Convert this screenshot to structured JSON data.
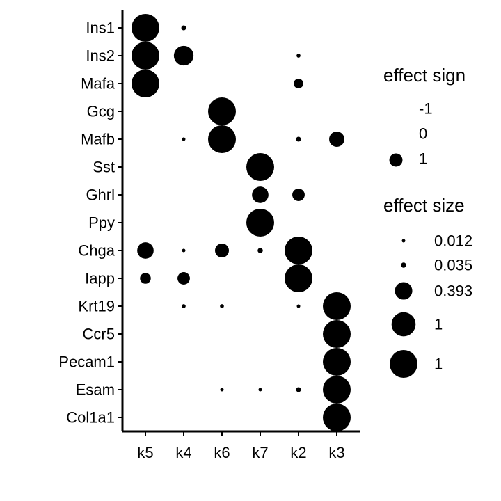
{
  "chart_data": {
    "type": "scatter",
    "subtype": "dot-plot",
    "x_categories": [
      "k5",
      "k4",
      "k6",
      "k7",
      "k2",
      "k3"
    ],
    "y_categories": [
      "Ins1",
      "Ins2",
      "Mafa",
      "Gcg",
      "Mafb",
      "Sst",
      "Ghrl",
      "Ppy",
      "Chga",
      "Iapp",
      "Krt19",
      "Ccr5",
      "Pecam1",
      "Esam",
      "Col1a1"
    ],
    "points": [
      {
        "gene": "Ins1",
        "cluster": "k5",
        "size": 1
      },
      {
        "gene": "Ins1",
        "cluster": "k4",
        "size": 0.03
      },
      {
        "gene": "Ins2",
        "cluster": "k5",
        "size": 1
      },
      {
        "gene": "Ins2",
        "cluster": "k4",
        "size": 0.5
      },
      {
        "gene": "Ins2",
        "cluster": "k2",
        "size": 0.02
      },
      {
        "gene": "Mafa",
        "cluster": "k5",
        "size": 1
      },
      {
        "gene": "Mafa",
        "cluster": "k2",
        "size": 0.12
      },
      {
        "gene": "Gcg",
        "cluster": "k6",
        "size": 1
      },
      {
        "gene": "Mafb",
        "cluster": "k4",
        "size": 0.012
      },
      {
        "gene": "Mafb",
        "cluster": "k6",
        "size": 1
      },
      {
        "gene": "Mafb",
        "cluster": "k2",
        "size": 0.03
      },
      {
        "gene": "Mafb",
        "cluster": "k3",
        "size": 0.3
      },
      {
        "gene": "Sst",
        "cluster": "k7",
        "size": 1
      },
      {
        "gene": "Ghrl",
        "cluster": "k7",
        "size": 0.35
      },
      {
        "gene": "Ghrl",
        "cluster": "k2",
        "size": 0.2
      },
      {
        "gene": "Ppy",
        "cluster": "k7",
        "size": 1
      },
      {
        "gene": "Chga",
        "cluster": "k5",
        "size": 0.35
      },
      {
        "gene": "Chga",
        "cluster": "k4",
        "size": 0.012
      },
      {
        "gene": "Chga",
        "cluster": "k6",
        "size": 0.25
      },
      {
        "gene": "Chga",
        "cluster": "k7",
        "size": 0.035
      },
      {
        "gene": "Chga",
        "cluster": "k2",
        "size": 1
      },
      {
        "gene": "Iapp",
        "cluster": "k5",
        "size": 0.15
      },
      {
        "gene": "Iapp",
        "cluster": "k4",
        "size": 0.2
      },
      {
        "gene": "Iapp",
        "cluster": "k2",
        "size": 1
      },
      {
        "gene": "Krt19",
        "cluster": "k4",
        "size": 0.02
      },
      {
        "gene": "Krt19",
        "cluster": "k6",
        "size": 0.02
      },
      {
        "gene": "Krt19",
        "cluster": "k2",
        "size": 0.005
      },
      {
        "gene": "Krt19",
        "cluster": "k3",
        "size": 1
      },
      {
        "gene": "Ccr5",
        "cluster": "k3",
        "size": 1
      },
      {
        "gene": "Pecam1",
        "cluster": "k3",
        "size": 1
      },
      {
        "gene": "Esam",
        "cluster": "k6",
        "size": 0.012
      },
      {
        "gene": "Esam",
        "cluster": "k7",
        "size": 0.005
      },
      {
        "gene": "Esam",
        "cluster": "k2",
        "size": 0.03
      },
      {
        "gene": "Esam",
        "cluster": "k3",
        "size": 1
      },
      {
        "gene": "Col1a1",
        "cluster": "k3",
        "size": 1
      }
    ],
    "legend_sign": {
      "title": "effect sign",
      "entries": [
        {
          "label": "-1",
          "visible_key": false
        },
        {
          "label": "0",
          "visible_key": false
        },
        {
          "label": "1",
          "visible_key": true
        }
      ]
    },
    "legend_size": {
      "title": "effect size",
      "entries": [
        {
          "label": "0.012",
          "value": 0.012
        },
        {
          "label": "0.035",
          "value": 0.035
        },
        {
          "label": "0.393",
          "value": 0.393
        },
        {
          "label": "1",
          "value": 0.75
        },
        {
          "label": "1",
          "value": 1
        }
      ]
    },
    "point_color": "#000000",
    "background_color": "#ffffff",
    "grid": false,
    "legend_position": "right"
  }
}
